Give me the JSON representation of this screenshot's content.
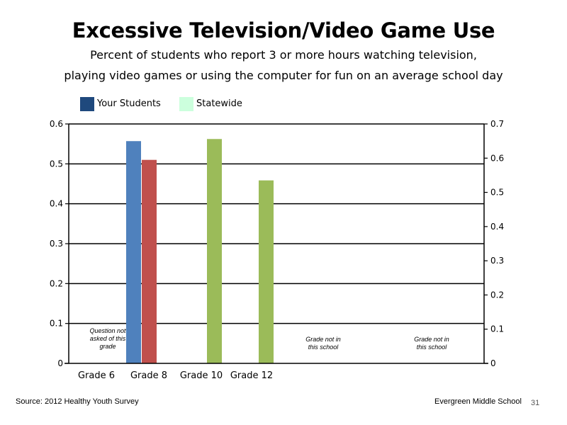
{
  "chart_data": {
    "type": "bar",
    "title": "Excessive Television/Video Game Use",
    "subtitle_lines": [
      "Percent of students who report 3 or more hours watching television,",
      "playing video games or using the computer for fun on an average school day"
    ],
    "categories": [
      "Grade 6",
      "Grade 8",
      "Grade 10",
      "Grade 12"
    ],
    "series": [
      {
        "name": "Your Students",
        "axis": "left",
        "color": "#4f81bd",
        "values": [
          null,
          0.557,
          null,
          null
        ]
      },
      {
        "name": "",
        "axis": "left",
        "color": "#c0504d",
        "values": [
          null,
          0.51,
          null,
          null
        ]
      },
      {
        "name": "Statewide",
        "axis": "right",
        "color": "#9bbb59",
        "values": [
          null,
          null,
          0.656,
          0.535
        ]
      }
    ],
    "legend": [
      {
        "name": "Your Students",
        "color": "#1f497d"
      },
      {
        "name": "Statewide",
        "color": "#ccffdd"
      }
    ],
    "legend_position": "top-left",
    "y_left": {
      "min": 0,
      "max": 0.6,
      "ticks": [
        "0",
        "0.1",
        "0.2",
        "0.3",
        "0.4",
        "0.5",
        "0.6"
      ]
    },
    "y_right": {
      "min": 0,
      "max": 0.7,
      "ticks": [
        "0",
        "0.1",
        "0.2",
        "0.3",
        "0.4",
        "0.5",
        "0.6",
        "0.7"
      ]
    },
    "gridlines": [
      0.1,
      0.2,
      0.3,
      0.4,
      0.5,
      0.6
    ],
    "annotations": [
      {
        "lines": [
          "Question not",
          "asked of this",
          "grade"
        ]
      },
      {
        "lines": [
          "Grade not in",
          "this school"
        ]
      },
      {
        "lines": [
          "Grade not in",
          "this school"
        ]
      }
    ]
  },
  "footer": {
    "source": "Source: 2012 Healthy Youth Survey",
    "school": "Evergreen Middle  School",
    "page": "31"
  }
}
